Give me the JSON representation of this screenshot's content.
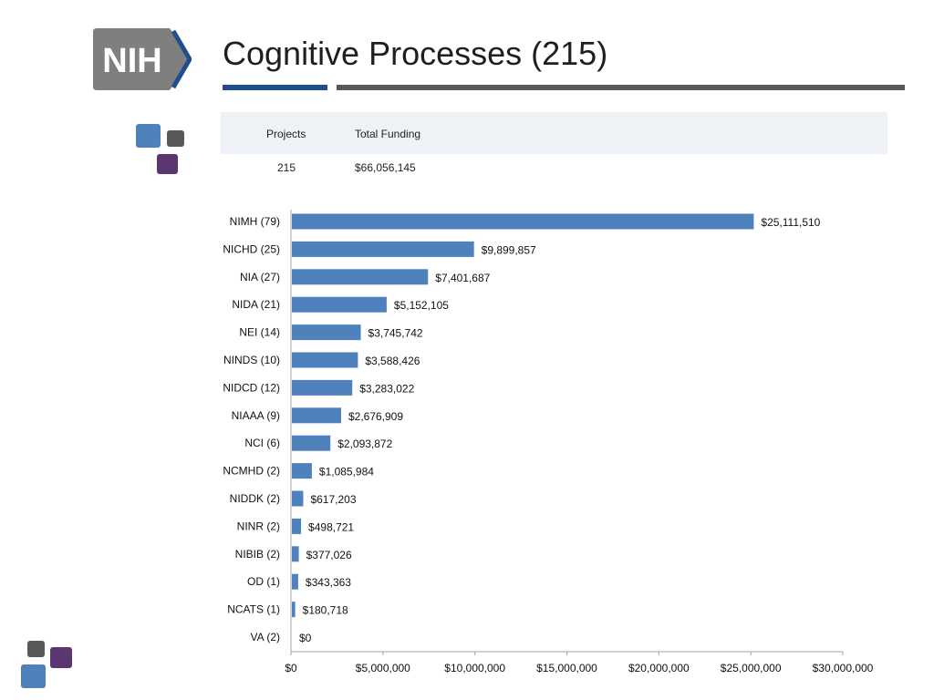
{
  "header": {
    "logo_text": "NIH",
    "title": "Cognitive Processes (215)"
  },
  "summary": {
    "columns": [
      "Projects",
      "Total Funding"
    ],
    "values": [
      "215",
      "$66,056,145"
    ]
  },
  "colors": {
    "bar": "#4f81bd",
    "accent_blue": "#1f4e8c",
    "accent_gray": "#595959",
    "square_blue": "#4f81bd",
    "square_gray": "#595959",
    "square_purple": "#5c3670"
  },
  "chart_data": {
    "type": "bar",
    "orientation": "horizontal",
    "categories": [
      "NIMH (79)",
      "NICHD (25)",
      "NIA (27)",
      "NIDA (21)",
      "NEI (14)",
      "NINDS (10)",
      "NIDCD (12)",
      "NIAAA (9)",
      "NCI (6)",
      "NCMHD (2)",
      "NIDDK (2)",
      "NINR (2)",
      "NIBIB (2)",
      "OD (1)",
      "NCATS (1)",
      "VA (2)"
    ],
    "values": [
      25111510,
      9899857,
      7401687,
      5152105,
      3745742,
      3588426,
      3283022,
      2676909,
      2093872,
      1085984,
      617203,
      498721,
      377026,
      343363,
      180718,
      0
    ],
    "data_labels": [
      "$25,111,510",
      "$9,899,857",
      "$7,401,687",
      "$5,152,105",
      "$3,745,742",
      "$3,588,426",
      "$3,283,022",
      "$2,676,909",
      "$2,093,872",
      "$1,085,984",
      "$617,203",
      "$498,721",
      "$377,026",
      "$343,363",
      "$180,718",
      "$0"
    ],
    "xlim": [
      0,
      30000000
    ],
    "x_ticks": [
      0,
      5000000,
      10000000,
      15000000,
      20000000,
      25000000,
      30000000
    ],
    "x_tick_labels": [
      "$0",
      "$5,000,000",
      "$10,000,000",
      "$15,000,000",
      "$20,000,000",
      "$25,000,000",
      "$30,000,000"
    ],
    "grid": false,
    "legend": "none"
  }
}
